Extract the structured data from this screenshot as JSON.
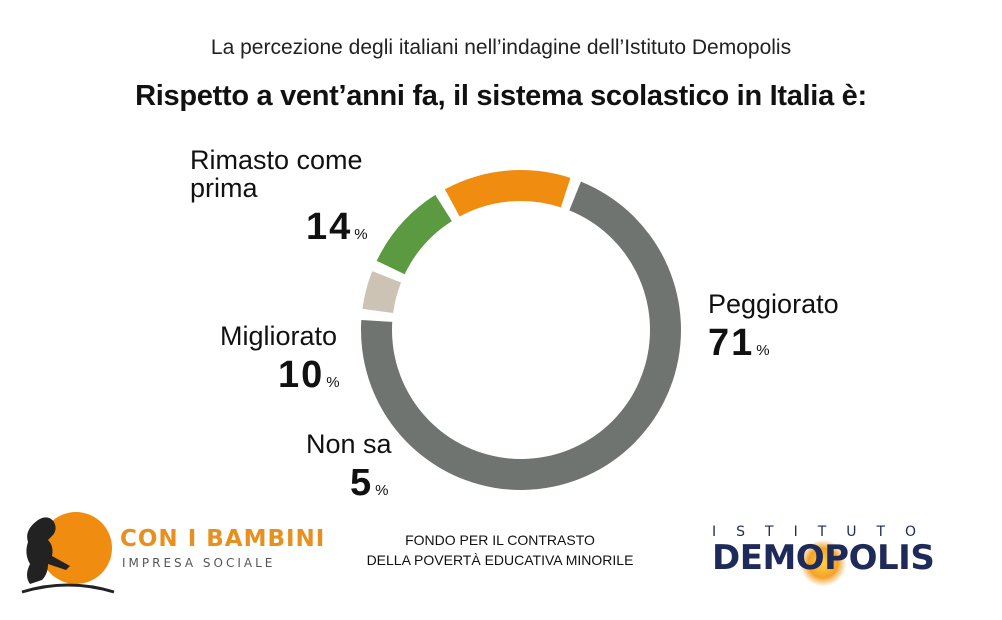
{
  "header": {
    "subtitle": "La percezione degli italiani nell’indagine dell’Istituto Demopolis",
    "title": "Rispetto a vent’anni fa, il sistema scolastico in Italia è:"
  },
  "chart_data": {
    "type": "pie",
    "donut": true,
    "title": "Rispetto a vent’anni fa, il sistema scolastico in Italia è:",
    "subtitle": "La percezione degli italiani nell’indagine dell’Istituto Demopolis",
    "unit": "%",
    "slices": [
      {
        "label": "Peggiorato",
        "value": 71,
        "color": "#6f7470"
      },
      {
        "label": "Non sa",
        "value": 5,
        "color": "#cdc3b5"
      },
      {
        "label": "Migliorato",
        "value": 10,
        "color": "#5b9a41"
      },
      {
        "label": "Rimasto come prima",
        "value": 14,
        "color": "#f08c0f"
      }
    ]
  },
  "labels": {
    "peggiorato": {
      "name": "Peggiorato",
      "num": "71",
      "pct": "%"
    },
    "non_sa": {
      "name": "Non sa",
      "num": "5",
      "pct": "%"
    },
    "migliorato": {
      "name": "Migliorato",
      "num": "10",
      "pct": "%"
    },
    "rimasto_line1": "Rimasto come",
    "rimasto_line2": "prima",
    "rimasto": {
      "num": "14",
      "pct": "%"
    }
  },
  "footer": {
    "con_i_bambini": "CON I BAMBINI",
    "impresa_sociale": "IMPRESA SOCIALE",
    "fondo_line1": "FONDO PER IL CONTRASTO",
    "fondo_line2": "DELLA POVERTÀ EDUCATIVA MINORILE",
    "istituto": "ISTITUTO",
    "demopolis": "DEMOPOLIS"
  }
}
